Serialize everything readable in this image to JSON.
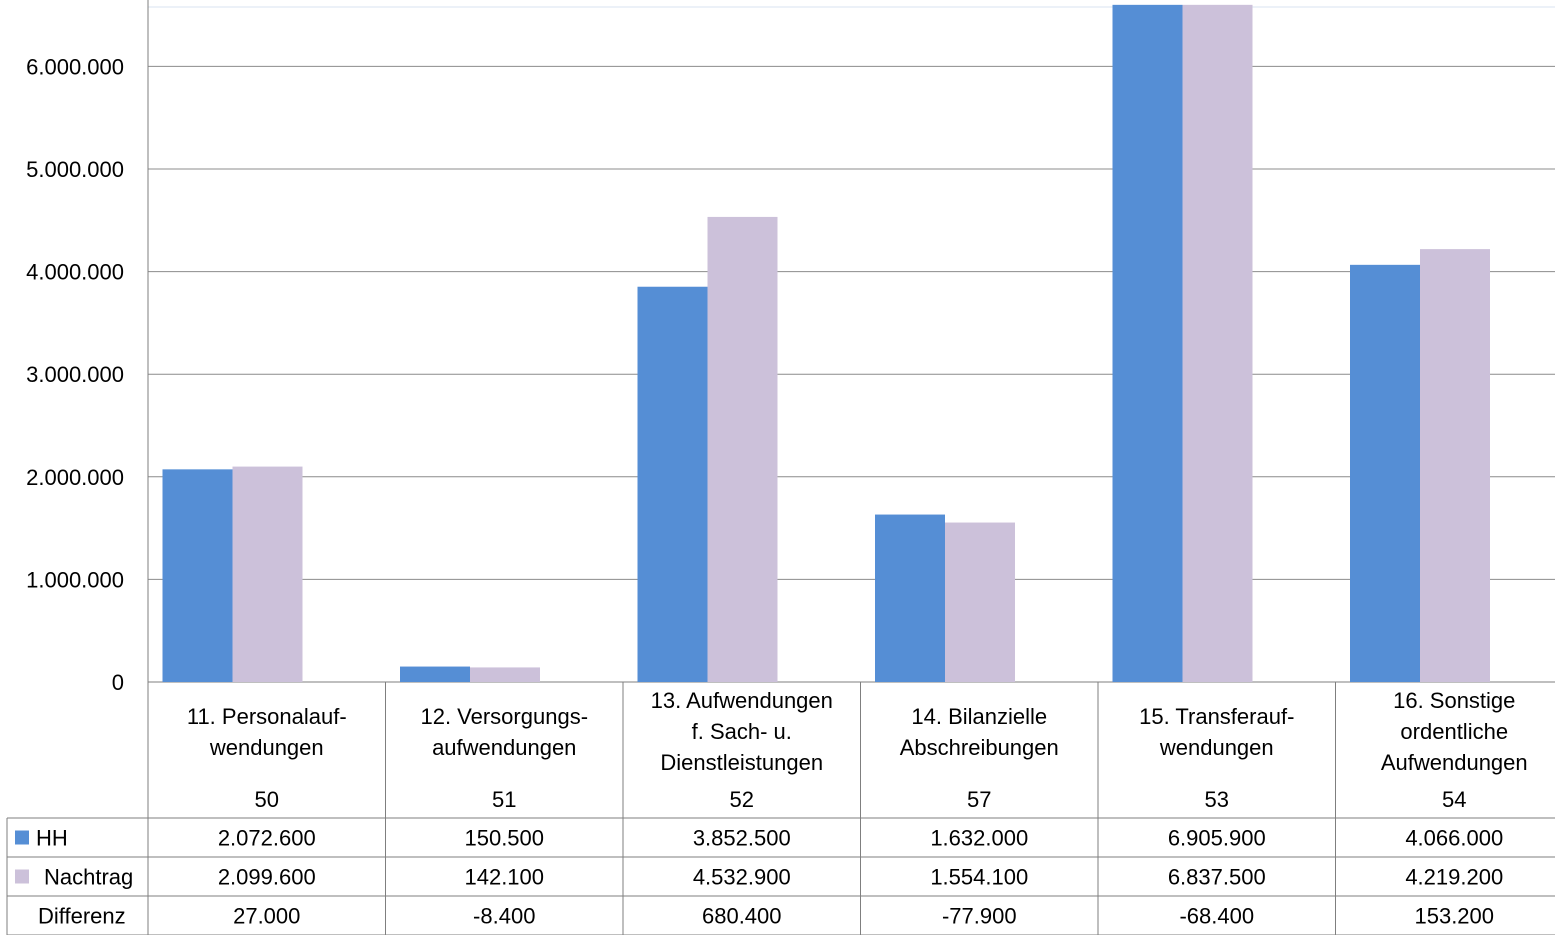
{
  "chart_data": {
    "type": "bar",
    "title": "",
    "xlabel": "",
    "ylabel": "",
    "ylim": [
      0,
      6600000
    ],
    "yticks": [
      0,
      1000000,
      2000000,
      3000000,
      4000000,
      5000000,
      6000000
    ],
    "ytick_labels": [
      "0",
      "1.000.000",
      "2.000.000",
      "3.000.000",
      "4.000.000",
      "5.000.000",
      "6.000.000"
    ],
    "grid": true,
    "categories": [
      {
        "lines": [
          "11. Personalauf-",
          "wendungen"
        ],
        "code": "50"
      },
      {
        "lines": [
          "12. Versorgungs-",
          "aufwendungen"
        ],
        "code": "51"
      },
      {
        "lines": [
          "13. Aufwendungen",
          "f. Sach- u.",
          "Dienstleistungen"
        ],
        "code": "52"
      },
      {
        "lines": [
          "14. Bilanzielle",
          "Abschreibungen"
        ],
        "code": "57"
      },
      {
        "lines": [
          "15. Transferauf-",
          "wendungen"
        ],
        "code": "53"
      },
      {
        "lines": [
          "16. Sonstige",
          "ordentliche",
          "Aufwendungen"
        ],
        "code": "54"
      }
    ],
    "series": [
      {
        "name": "HH",
        "color": "#558ed5",
        "values": [
          2072600,
          150500,
          3852500,
          1632000,
          6905900,
          4066000
        ],
        "labels": [
          "2.072.600",
          "150.500",
          "3.852.500",
          "1.632.000",
          "6.905.900",
          "4.066.000"
        ]
      },
      {
        "name": "Nachtrag",
        "color": "#ccc1da",
        "values": [
          2099600,
          142100,
          4532900,
          1554100,
          6837500,
          4219200
        ],
        "labels": [
          "2.099.600",
          "142.100",
          "4.532.900",
          "1.554.100",
          "6.837.500",
          "4.219.200"
        ]
      }
    ],
    "table_extra_row": {
      "name": "Differenz",
      "values": [
        27000,
        -8400,
        680400,
        -77900,
        -68400,
        153200
      ],
      "labels": [
        "27.000",
        "-8.400",
        "680.400",
        "-77.900",
        "-68.400",
        "153.200"
      ]
    }
  }
}
